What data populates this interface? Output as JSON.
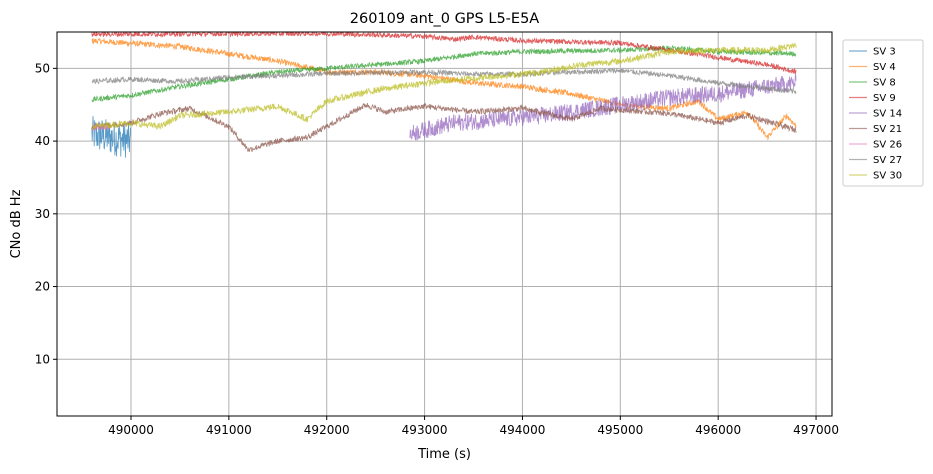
{
  "chart_data": {
    "type": "line",
    "title": "260109 ant_0 GPS L5-E5A",
    "xlabel": "Time (s)",
    "ylabel": "CNo dB Hz",
    "xlim": [
      489244,
      497163
    ],
    "ylim": [
      2.2,
      55
    ],
    "xticks": [
      490000,
      491000,
      492000,
      493000,
      494000,
      495000,
      496000,
      497000
    ],
    "yticks": [
      10,
      20,
      30,
      40,
      50
    ],
    "grid": true,
    "legend_position": "outside-right",
    "series": [
      {
        "name": "SV 3",
        "color": "#1f77b4",
        "noise": 2.5,
        "points": [
          [
            489600,
            41
          ],
          [
            489800,
            40.5
          ],
          [
            490000,
            40
          ]
        ]
      },
      {
        "name": "SV 4",
        "color": "#ff7f0e",
        "noise": 0.4,
        "points": [
          [
            489600,
            53.8
          ],
          [
            490500,
            53
          ],
          [
            491000,
            52
          ],
          [
            491500,
            51
          ],
          [
            492000,
            49.5
          ],
          [
            492500,
            49.5
          ],
          [
            493000,
            49
          ],
          [
            493500,
            48
          ],
          [
            494000,
            47.5
          ],
          [
            494500,
            46.5
          ],
          [
            495000,
            45
          ],
          [
            495500,
            44.5
          ],
          [
            495800,
            45.5
          ],
          [
            496000,
            43
          ],
          [
            496300,
            44
          ],
          [
            496500,
            40.5
          ],
          [
            496700,
            43.5
          ],
          [
            496800,
            42
          ]
        ]
      },
      {
        "name": "SV 8",
        "color": "#2ca02c",
        "noise": 0.35,
        "points": [
          [
            489600,
            45.7
          ],
          [
            490000,
            46.3
          ],
          [
            490500,
            47.5
          ],
          [
            491000,
            48.5
          ],
          [
            491500,
            49.5
          ],
          [
            492000,
            50
          ],
          [
            492500,
            50.5
          ],
          [
            493000,
            51
          ],
          [
            493500,
            52
          ],
          [
            494000,
            52.3
          ],
          [
            495000,
            52.5
          ],
          [
            495500,
            52.8
          ],
          [
            496000,
            52.3
          ],
          [
            496800,
            52
          ]
        ]
      },
      {
        "name": "SV 9",
        "color": "#d62728",
        "noise": 0.35,
        "points": [
          [
            489600,
            54.7
          ],
          [
            492000,
            54.8
          ],
          [
            493000,
            54.4
          ],
          [
            493300,
            54
          ],
          [
            493500,
            54.3
          ],
          [
            494000,
            53.8
          ],
          [
            495000,
            53.5
          ],
          [
            495500,
            52.5
          ],
          [
            496000,
            51.5
          ],
          [
            496500,
            50.5
          ],
          [
            496800,
            49.5
          ]
        ]
      },
      {
        "name": "SV 14",
        "color": "#9467bd",
        "noise": 1.2,
        "points": [
          [
            492850,
            41
          ],
          [
            493300,
            42.5
          ],
          [
            493800,
            43
          ],
          [
            494200,
            43.5
          ],
          [
            494500,
            44
          ],
          [
            495000,
            45
          ],
          [
            495500,
            46
          ],
          [
            496000,
            46.5
          ],
          [
            496500,
            47.5
          ],
          [
            496800,
            48
          ]
        ]
      },
      {
        "name": "SV 21",
        "color": "#8c564b",
        "noise": 0.4,
        "points": [
          [
            489600,
            42
          ],
          [
            490000,
            42.5
          ],
          [
            490300,
            43.8
          ],
          [
            490600,
            44.5
          ],
          [
            491000,
            42
          ],
          [
            491200,
            38.8
          ],
          [
            491500,
            40
          ],
          [
            491800,
            40.5
          ],
          [
            492000,
            42
          ],
          [
            492400,
            45
          ],
          [
            492600,
            44
          ],
          [
            493000,
            44.8
          ],
          [
            493500,
            44
          ],
          [
            494000,
            44.5
          ],
          [
            494500,
            43
          ],
          [
            494800,
            44.5
          ],
          [
            495500,
            43.8
          ],
          [
            496000,
            42.5
          ],
          [
            496300,
            43.5
          ],
          [
            496800,
            41.5
          ]
        ]
      },
      {
        "name": "SV 26",
        "color": "#e377c2",
        "noise": 0.5,
        "points": [
          [
            489600,
            42
          ],
          [
            489800,
            42
          ]
        ]
      },
      {
        "name": "SV 27",
        "color": "#7f7f7f",
        "noise": 0.35,
        "points": [
          [
            489600,
            48.2
          ],
          [
            490000,
            48.5
          ],
          [
            490500,
            48.2
          ],
          [
            491000,
            48.8
          ],
          [
            491500,
            49
          ],
          [
            492000,
            49.3
          ],
          [
            492500,
            49.4
          ],
          [
            493000,
            49.5
          ],
          [
            493500,
            49.2
          ],
          [
            494000,
            49.2
          ],
          [
            494500,
            49.5
          ],
          [
            495000,
            49.7
          ],
          [
            495500,
            49
          ],
          [
            496000,
            48
          ],
          [
            496800,
            46.8
          ]
        ]
      },
      {
        "name": "SV 30",
        "color": "#bcbd22",
        "noise": 0.45,
        "points": [
          [
            489600,
            42
          ],
          [
            490000,
            42.5
          ],
          [
            490300,
            42
          ],
          [
            490500,
            43.5
          ],
          [
            491000,
            44
          ],
          [
            491500,
            44.8
          ],
          [
            491800,
            43
          ],
          [
            492000,
            45.5
          ],
          [
            492500,
            47
          ],
          [
            493000,
            48
          ],
          [
            493400,
            48.5
          ],
          [
            493800,
            49
          ],
          [
            494200,
            49.5
          ],
          [
            494600,
            50.5
          ],
          [
            495000,
            51
          ],
          [
            495500,
            52.3
          ],
          [
            496000,
            52.5
          ],
          [
            496500,
            52.5
          ],
          [
            496800,
            53.2
          ]
        ]
      }
    ]
  }
}
